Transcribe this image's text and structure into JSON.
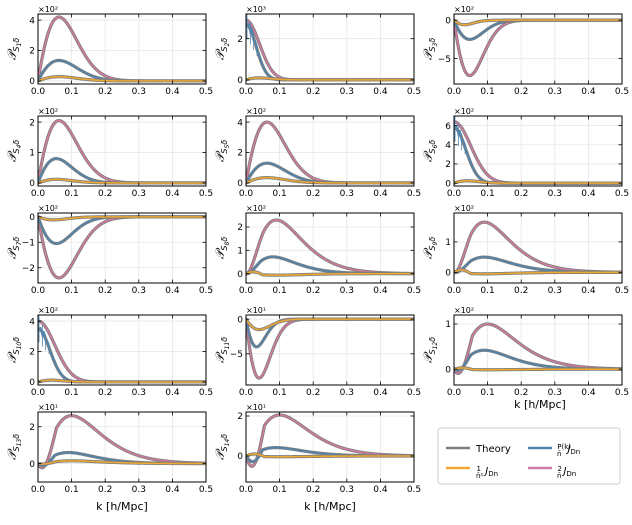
{
  "figure": {
    "x_axis_label": "k [h/Mpc]",
    "xlim": [
      0,
      0.5
    ],
    "xticks": [
      "0.0",
      "0.1",
      "0.2",
      "0.3",
      "0.4",
      "0.5"
    ],
    "colors": {
      "theory": "#7f7f7f",
      "pk_jdn": "#4e85b0",
      "one_over_nbar": "#f0a830",
      "two_over_nbar": "#d37aa0"
    }
  },
  "legend": {
    "entries": [
      {
        "key": "theory",
        "label": "Theory"
      },
      {
        "key": "pk_jdn",
        "label": "P(k)/n̄ J_Dn"
      },
      {
        "key": "one_over_nbar",
        "label": "1/n̄² J_Dn"
      },
      {
        "key": "two_over_nbar",
        "label": "2/n̄ J_Dn"
      }
    ]
  },
  "chart_data": [
    {
      "type": "line",
      "index": 1,
      "ylabel": "P_S1δ",
      "scale": "×10²",
      "ylim": [
        -0.2,
        4.4
      ],
      "yticks": [
        0,
        2,
        4
      ],
      "series": [
        {
          "key": "two_over_nbar",
          "shape": "bump",
          "peak": 4.2,
          "k_peak": 0.08
        },
        {
          "key": "pk_jdn",
          "shape": "bump",
          "peak": 1.35,
          "k_peak": 0.08
        },
        {
          "key": "one_over_nbar",
          "shape": "bump",
          "peak": 0.28,
          "k_peak": 0.08
        }
      ]
    },
    {
      "type": "line",
      "index": 2,
      "ylabel": "P_S2δ",
      "scale": "×10³",
      "ylim": [
        -0.2,
        3.2
      ],
      "yticks": [
        0,
        2
      ],
      "noisy_low_k": true,
      "series": [
        {
          "key": "two_over_nbar",
          "shape": "decay",
          "peak": 2.9,
          "k_peak": 0.04
        },
        {
          "key": "pk_jdn",
          "shape": "decay",
          "peak": 2.7,
          "k_peak": 0.03
        },
        {
          "key": "one_over_nbar",
          "shape": "bump",
          "peak": 0.1,
          "k_peak": 0.05
        }
      ]
    },
    {
      "type": "line",
      "index": 3,
      "ylabel": "P_S3δ",
      "scale": "×10²",
      "ylim": [
        -8.3,
        0.8
      ],
      "yticks": [
        -5,
        0
      ],
      "series": [
        {
          "key": "two_over_nbar",
          "shape": "bump",
          "peak": -7.2,
          "k_peak": 0.06
        },
        {
          "key": "pk_jdn",
          "shape": "bump",
          "peak": -2.5,
          "k_peak": 0.06
        },
        {
          "key": "one_over_nbar",
          "shape": "bump",
          "peak": -0.6,
          "k_peak": 0.04
        }
      ]
    },
    {
      "type": "line",
      "index": 4,
      "ylabel": "P_S4δ",
      "scale": "×10²",
      "ylim": [
        -0.1,
        2.2
      ],
      "yticks": [
        0,
        1,
        2
      ],
      "series": [
        {
          "key": "two_over_nbar",
          "shape": "bump",
          "peak": 2.05,
          "k_peak": 0.08
        },
        {
          "key": "pk_jdn",
          "shape": "bump",
          "peak": 0.8,
          "k_peak": 0.07
        },
        {
          "key": "one_over_nbar",
          "shape": "bump",
          "peak": 0.12,
          "k_peak": 0.07
        }
      ]
    },
    {
      "type": "line",
      "index": 5,
      "ylabel": "P_S5δ",
      "scale": "×10²",
      "ylim": [
        -0.2,
        4.4
      ],
      "yticks": [
        0,
        2,
        4
      ],
      "series": [
        {
          "key": "two_over_nbar",
          "shape": "bump",
          "peak": 4.0,
          "k_peak": 0.08
        },
        {
          "key": "pk_jdn",
          "shape": "bump",
          "peak": 1.3,
          "k_peak": 0.08
        },
        {
          "key": "one_over_nbar",
          "shape": "bump",
          "peak": 0.35,
          "k_peak": 0.08
        }
      ]
    },
    {
      "type": "line",
      "index": 6,
      "ylabel": "P_S6δ",
      "scale": "×10²",
      "ylim": [
        -0.3,
        7.0
      ],
      "yticks": [
        0,
        2,
        4,
        6
      ],
      "noisy_low_k": true,
      "series": [
        {
          "key": "two_over_nbar",
          "shape": "decay",
          "peak": 6.4,
          "k_peak": 0.05
        },
        {
          "key": "pk_jdn",
          "shape": "decay",
          "peak": 5.8,
          "k_peak": 0.035
        },
        {
          "key": "one_over_nbar",
          "shape": "bump",
          "peak": 0.25,
          "k_peak": 0.05
        }
      ]
    },
    {
      "type": "line",
      "index": 7,
      "ylabel": "P_S7δ",
      "scale": "×10²",
      "ylim": [
        -2.6,
        0.15
      ],
      "yticks": [
        -2,
        -1,
        0
      ],
      "series": [
        {
          "key": "two_over_nbar",
          "shape": "bump",
          "peak": -2.4,
          "k_peak": 0.08
        },
        {
          "key": "pk_jdn",
          "shape": "bump",
          "peak": -1.05,
          "k_peak": 0.07
        },
        {
          "key": "one_over_nbar",
          "shape": "bump",
          "peak": -0.12,
          "k_peak": 0.06
        }
      ]
    },
    {
      "type": "line",
      "index": 8,
      "ylabel": "P_S8δ",
      "scale": "×10²",
      "ylim": [
        -0.4,
        2.6
      ],
      "yticks": [
        0,
        1,
        2
      ],
      "series": [
        {
          "key": "two_over_nbar",
          "shape": "dip",
          "peak": 2.3,
          "k_peak": 0.09,
          "dip": -0.1
        },
        {
          "key": "pk_jdn",
          "shape": "dip",
          "peak": 0.72,
          "k_peak": 0.08,
          "dip": -0.05
        },
        {
          "key": "one_over_nbar",
          "shape": "dip",
          "peak": 0.08,
          "k_peak": 0.09,
          "dip": -0.12
        }
      ]
    },
    {
      "type": "line",
      "index": 9,
      "ylabel": "P_S9δ",
      "scale": "×10²",
      "ylim": [
        -0.35,
        1.95
      ],
      "yticks": [
        0,
        1
      ],
      "ytick_labels_extra": [],
      "series": [
        {
          "key": "two_over_nbar",
          "shape": "dip",
          "peak": 1.65,
          "k_peak": 0.09,
          "dip": -0.1
        },
        {
          "key": "pk_jdn",
          "shape": "dip",
          "peak": 0.5,
          "k_peak": 0.09,
          "dip": -0.05
        },
        {
          "key": "one_over_nbar",
          "shape": "dip",
          "peak": 0.08,
          "k_peak": 0.09,
          "dip": -0.15
        }
      ]
    },
    {
      "type": "line",
      "index": 10,
      "ylabel": "P_S10δ",
      "scale": "×10²",
      "ylim": [
        -0.2,
        4.4
      ],
      "yticks": [
        0,
        2,
        4
      ],
      "noisy_low_k": true,
      "series": [
        {
          "key": "two_over_nbar",
          "shape": "decay",
          "peak": 4.0,
          "k_peak": 0.05
        },
        {
          "key": "pk_jdn",
          "shape": "decay",
          "peak": 3.5,
          "k_peak": 0.035
        },
        {
          "key": "one_over_nbar",
          "shape": "bump",
          "peak": 0.12,
          "k_peak": 0.05
        }
      ]
    },
    {
      "type": "line",
      "index": 11,
      "ylabel": "P_S11δ",
      "scale": "×10¹",
      "ylim": [
        -9.5,
        0.6
      ],
      "yticks": [
        -5,
        0
      ],
      "series": [
        {
          "key": "two_over_nbar",
          "shape": "bump",
          "peak": -8.5,
          "k_peak": 0.05
        },
        {
          "key": "pk_jdn",
          "shape": "bump",
          "peak": -4.0,
          "k_peak": 0.04
        },
        {
          "key": "one_over_nbar",
          "shape": "bump",
          "peak": -1.5,
          "k_peak": 0.05
        }
      ]
    },
    {
      "type": "line",
      "index": 12,
      "ylabel": "P_S12δ",
      "scale": "×10²",
      "ylim": [
        -0.35,
        1.2
      ],
      "yticks": [
        0,
        1
      ],
      "series": [
        {
          "key": "two_over_nbar",
          "shape": "dip",
          "peak": 1.0,
          "k_peak": 0.1,
          "dip": -0.28
        },
        {
          "key": "pk_jdn",
          "shape": "dip",
          "peak": 0.42,
          "k_peak": 0.09,
          "dip": -0.1
        },
        {
          "key": "one_over_nbar",
          "shape": "dip",
          "peak": 0.03,
          "k_peak": 0.1,
          "dip": -0.08
        }
      ]
    },
    {
      "type": "line",
      "index": 13,
      "ylabel": "P_S13δ",
      "scale": "×10¹",
      "ylim": [
        -1.0,
        2.8
      ],
      "yticks": [
        0,
        2
      ],
      "series": [
        {
          "key": "two_over_nbar",
          "shape": "dip",
          "peak": 2.6,
          "k_peak": 0.1,
          "dip": -0.7
        },
        {
          "key": "pk_jdn",
          "shape": "dip",
          "peak": 0.6,
          "k_peak": 0.09,
          "dip": -0.25
        },
        {
          "key": "one_over_nbar",
          "shape": "dip",
          "peak": 0.15,
          "k_peak": 0.1,
          "dip": -0.05
        }
      ]
    },
    {
      "type": "line",
      "index": 14,
      "ylabel": "P_S14δ",
      "scale": "×10¹",
      "ylim": [
        -1.3,
        2.2
      ],
      "yticks": [
        0,
        2
      ],
      "series": [
        {
          "key": "two_over_nbar",
          "shape": "dip",
          "peak": 2.05,
          "k_peak": 0.1,
          "dip": -1.0
        },
        {
          "key": "pk_jdn",
          "shape": "dip",
          "peak": 0.42,
          "k_peak": 0.09,
          "dip": -0.4
        },
        {
          "key": "one_over_nbar",
          "shape": "dip",
          "peak": 0.1,
          "k_peak": 0.1,
          "dip": -0.3
        }
      ]
    }
  ]
}
